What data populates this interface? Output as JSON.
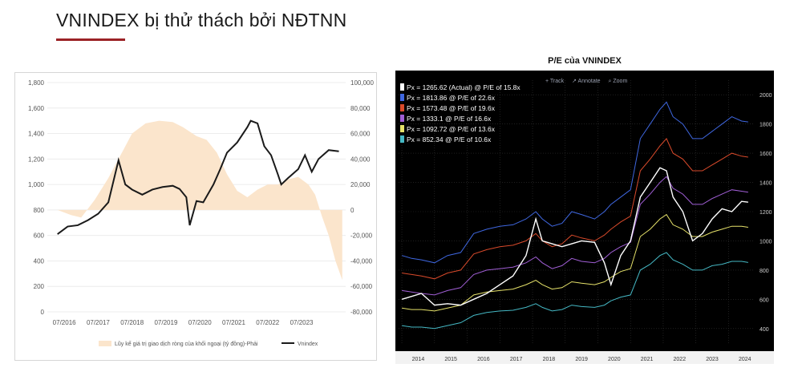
{
  "slide": {
    "title": "VNINDEX bị thử thách bởi NĐTNN",
    "accent": "#9b2226"
  },
  "chart_data": [
    {
      "type": "line",
      "x_ticks": [
        "07/2016",
        "07/2017",
        "07/2018",
        "07/2019",
        "07/2020",
        "07/2021",
        "07/2022",
        "07/2023"
      ],
      "y_left_ticks": [
        "1,800",
        "1,600",
        "1,400",
        "1,200",
        "1,000",
        "800",
        "600",
        "400",
        "200",
        "0"
      ],
      "y_right_ticks": [
        "100,000",
        "80,000",
        "60,000",
        "40,000",
        "20,000",
        "0",
        "-20,000",
        "-40,000",
        "-60,000",
        "-80,000"
      ],
      "ylim_left": [
        0,
        1800
      ],
      "ylim_right": [
        -80000,
        100000
      ],
      "legend": [
        "Lũy kế giá trị giao dịch ròng của khối ngoại (tỷ đồng)-Phải",
        "Vnindex"
      ],
      "legend_position": "bottom",
      "series": [
        {
          "name": "Vnindex",
          "color": "#1a1a1a",
          "x": [
            2016.3,
            2016.6,
            2016.9,
            2017.2,
            2017.5,
            2017.8,
            2018.0,
            2018.1,
            2018.3,
            2018.5,
            2018.8,
            2019.1,
            2019.4,
            2019.7,
            2019.9,
            2020.1,
            2020.2,
            2020.4,
            2020.6,
            2020.9,
            2021.1,
            2021.3,
            2021.6,
            2021.9,
            2022.0,
            2022.2,
            2022.4,
            2022.6,
            2022.8,
            2022.9,
            2023.1,
            2023.4,
            2023.6,
            2023.8,
            2024.0,
            2024.3,
            2024.6
          ],
          "y": [
            610,
            670,
            680,
            720,
            770,
            860,
            1080,
            1190,
            1000,
            960,
            920,
            960,
            980,
            990,
            965,
            900,
            680,
            870,
            860,
            1000,
            1120,
            1250,
            1330,
            1450,
            1500,
            1480,
            1300,
            1230,
            1080,
            1000,
            1050,
            1120,
            1230,
            1100,
            1200,
            1270,
            1260
          ]
        },
        {
          "name": "Lũy kế giá trị giao dịch ròng của khối ngoại (tỷ đồng)-Phải",
          "color": "#fbe5cc",
          "x": [
            2016.3,
            2016.7,
            2017.0,
            2017.4,
            2017.8,
            2018.1,
            2018.5,
            2018.9,
            2019.3,
            2019.7,
            2020.0,
            2020.4,
            2020.7,
            2021.0,
            2021.3,
            2021.6,
            2021.9,
            2022.2,
            2022.5,
            2022.8,
            2023.1,
            2023.4,
            2023.7,
            2023.9,
            2024.1,
            2024.3,
            2024.5,
            2024.7
          ],
          "y": [
            0,
            -4000,
            -6000,
            8000,
            25000,
            40000,
            60000,
            68000,
            70000,
            69000,
            65000,
            58000,
            55000,
            45000,
            28000,
            15000,
            10000,
            16000,
            20000,
            20000,
            24000,
            26000,
            20000,
            12000,
            -5000,
            -20000,
            -40000,
            -55000
          ]
        }
      ]
    },
    {
      "type": "line",
      "title": "P/E của VNINDEX",
      "x_ticks": [
        "2014",
        "2015",
        "2016",
        "2017",
        "2018",
        "2019",
        "2020",
        "2021",
        "2022",
        "2023",
        "2024"
      ],
      "y_ticks": [
        "2000",
        "1800",
        "1600",
        "1400",
        "1200",
        "1000",
        "800",
        "600",
        "400"
      ],
      "ylim": [
        300,
        2100
      ],
      "toolbar": [
        "+ Track",
        "↗ Annotate",
        "⌕ Zoom"
      ],
      "legend_position": "top-left",
      "series": [
        {
          "name": "Px = 1265.62 (Actual) @ P/E of 15.8x",
          "color": "#ffffff",
          "x": [
            2014.0,
            2014.3,
            2014.6,
            2015.0,
            2015.4,
            2015.8,
            2016.2,
            2016.6,
            2017.0,
            2017.4,
            2017.8,
            2018.1,
            2018.3,
            2018.6,
            2018.9,
            2019.2,
            2019.5,
            2019.9,
            2020.2,
            2020.4,
            2020.7,
            2021.0,
            2021.3,
            2021.6,
            2021.9,
            2022.1,
            2022.3,
            2022.6,
            2022.9,
            2023.2,
            2023.5,
            2023.8,
            2024.1,
            2024.4,
            2024.6
          ],
          "y": [
            600,
            620,
            640,
            560,
            570,
            560,
            600,
            640,
            700,
            760,
            900,
            1150,
            1000,
            980,
            960,
            980,
            1000,
            990,
            850,
            700,
            900,
            1000,
            1300,
            1400,
            1500,
            1480,
            1300,
            1200,
            1000,
            1050,
            1150,
            1220,
            1200,
            1270,
            1265
          ]
        },
        {
          "name": "Px = 1813.86 @ P/E of 22.6x",
          "color": "#3f67e0",
          "x": [
            2014.0,
            2014.3,
            2014.6,
            2015.0,
            2015.4,
            2015.8,
            2016.2,
            2016.6,
            2017.0,
            2017.4,
            2017.8,
            2018.1,
            2018.3,
            2018.6,
            2018.9,
            2019.2,
            2019.5,
            2019.9,
            2020.2,
            2020.4,
            2020.7,
            2021.0,
            2021.3,
            2021.6,
            2021.9,
            2022.1,
            2022.3,
            2022.6,
            2022.9,
            2023.2,
            2023.5,
            2023.8,
            2024.1,
            2024.4,
            2024.6
          ],
          "y": [
            900,
            880,
            870,
            850,
            900,
            920,
            1050,
            1080,
            1100,
            1110,
            1150,
            1200,
            1150,
            1100,
            1120,
            1200,
            1180,
            1150,
            1200,
            1250,
            1300,
            1350,
            1700,
            1800,
            1900,
            1950,
            1850,
            1800,
            1700,
            1700,
            1750,
            1800,
            1850,
            1820,
            1814
          ]
        },
        {
          "name": "Px = 1573.48 @ P/E of 19.6x",
          "color": "#d94a2b",
          "x": [
            2014.0,
            2014.3,
            2014.6,
            2015.0,
            2015.4,
            2015.8,
            2016.2,
            2016.6,
            2017.0,
            2017.4,
            2017.8,
            2018.1,
            2018.3,
            2018.6,
            2018.9,
            2019.2,
            2019.5,
            2019.9,
            2020.2,
            2020.4,
            2020.7,
            2021.0,
            2021.3,
            2021.6,
            2021.9,
            2022.1,
            2022.3,
            2022.6,
            2022.9,
            2023.2,
            2023.5,
            2023.8,
            2024.1,
            2024.4,
            2024.6
          ],
          "y": [
            780,
            770,
            760,
            740,
            780,
            800,
            910,
            940,
            960,
            970,
            1000,
            1050,
            1000,
            960,
            980,
            1040,
            1020,
            1000,
            1040,
            1080,
            1130,
            1170,
            1480,
            1560,
            1650,
            1700,
            1600,
            1560,
            1480,
            1480,
            1520,
            1560,
            1600,
            1580,
            1573
          ]
        },
        {
          "name": "Px = 1333.1 @ P/E of 16.6x",
          "color": "#a15fd6",
          "x": [
            2014.0,
            2014.3,
            2014.6,
            2015.0,
            2015.4,
            2015.8,
            2016.2,
            2016.6,
            2017.0,
            2017.4,
            2017.8,
            2018.1,
            2018.3,
            2018.6,
            2018.9,
            2019.2,
            2019.5,
            2019.9,
            2020.2,
            2020.4,
            2020.7,
            2021.0,
            2021.3,
            2021.6,
            2021.9,
            2022.1,
            2022.3,
            2022.6,
            2022.9,
            2023.2,
            2023.5,
            2023.8,
            2024.1,
            2024.4,
            2024.6
          ],
          "y": [
            660,
            650,
            640,
            630,
            660,
            680,
            770,
            800,
            810,
            820,
            850,
            890,
            850,
            810,
            830,
            880,
            860,
            850,
            880,
            920,
            960,
            990,
            1250,
            1320,
            1400,
            1440,
            1360,
            1320,
            1250,
            1250,
            1290,
            1320,
            1350,
            1340,
            1333
          ]
        },
        {
          "name": "Px = 1092.72 @ P/E of 13.6x",
          "color": "#e6e26a",
          "x": [
            2014.0,
            2014.3,
            2014.6,
            2015.0,
            2015.4,
            2015.8,
            2016.2,
            2016.6,
            2017.0,
            2017.4,
            2017.8,
            2018.1,
            2018.3,
            2018.6,
            2018.9,
            2019.2,
            2019.5,
            2019.9,
            2020.2,
            2020.4,
            2020.7,
            2021.0,
            2021.3,
            2021.6,
            2021.9,
            2022.1,
            2022.3,
            2022.6,
            2022.9,
            2023.2,
            2023.5,
            2023.8,
            2024.1,
            2024.4,
            2024.6
          ],
          "y": [
            540,
            530,
            530,
            520,
            540,
            560,
            630,
            650,
            660,
            670,
            700,
            730,
            700,
            670,
            680,
            720,
            710,
            700,
            720,
            750,
            790,
            810,
            1030,
            1080,
            1150,
            1180,
            1110,
            1080,
            1030,
            1030,
            1060,
            1080,
            1100,
            1100,
            1093
          ]
        },
        {
          "name": "Px = 852.34 @ P/E of 10.6x",
          "color": "#45b8c4",
          "x": [
            2014.0,
            2014.3,
            2014.6,
            2015.0,
            2015.4,
            2015.8,
            2016.2,
            2016.6,
            2017.0,
            2017.4,
            2017.8,
            2018.1,
            2018.3,
            2018.6,
            2018.9,
            2019.2,
            2019.5,
            2019.9,
            2020.2,
            2020.4,
            2020.7,
            2021.0,
            2021.3,
            2021.6,
            2021.9,
            2022.1,
            2022.3,
            2022.6,
            2022.9,
            2023.2,
            2023.5,
            2023.8,
            2024.1,
            2024.4,
            2024.6
          ],
          "y": [
            420,
            410,
            410,
            400,
            420,
            440,
            490,
            510,
            520,
            525,
            545,
            570,
            545,
            520,
            530,
            560,
            550,
            545,
            560,
            590,
            615,
            630,
            800,
            840,
            900,
            920,
            870,
            840,
            800,
            800,
            830,
            840,
            860,
            860,
            852
          ]
        }
      ]
    }
  ]
}
